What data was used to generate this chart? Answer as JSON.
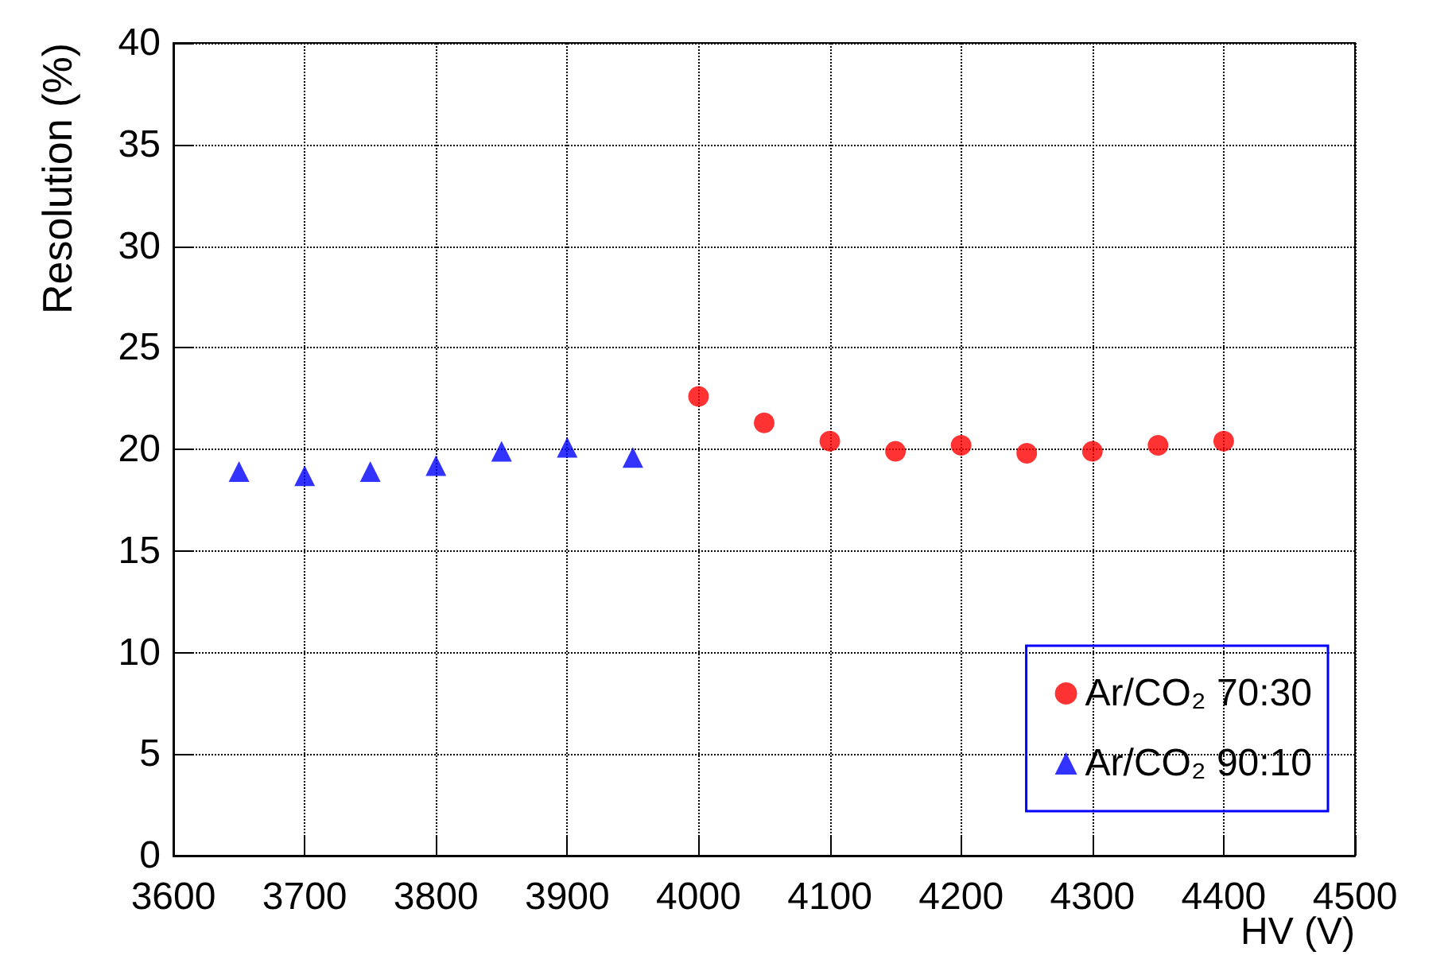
{
  "chart_data": {
    "type": "scatter",
    "xlabel": "HV (V)",
    "ylabel": "Resolution (%)",
    "xlim": [
      3600,
      4500
    ],
    "xticks": [
      3600,
      3700,
      3800,
      3900,
      4000,
      4100,
      4200,
      4300,
      4400,
      4500
    ],
    "ylim": [
      0,
      40
    ],
    "yticks": [
      0,
      5,
      10,
      15,
      20,
      25,
      30,
      35,
      40
    ],
    "grid": true,
    "legend": "bottom right",
    "series": [
      {
        "name": "Ar/CO₂ 70:30",
        "color": "#ff0000",
        "marker": "circle",
        "x": [
          4000,
          4050,
          4100,
          4150,
          4200,
          4250,
          4300,
          4350,
          4400
        ],
        "values": [
          22.6,
          21.3,
          20.4,
          19.9,
          20.2,
          19.8,
          19.9,
          20.2,
          20.4
        ]
      },
      {
        "name": "Ar/CO₂ 90:10",
        "color": "#0000ff",
        "marker": "triangle",
        "x": [
          3650,
          3700,
          3750,
          3800,
          3850,
          3900,
          3950
        ],
        "values": [
          18.9,
          18.7,
          18.9,
          19.2,
          19.9,
          20.1,
          19.6
        ]
      }
    ]
  }
}
